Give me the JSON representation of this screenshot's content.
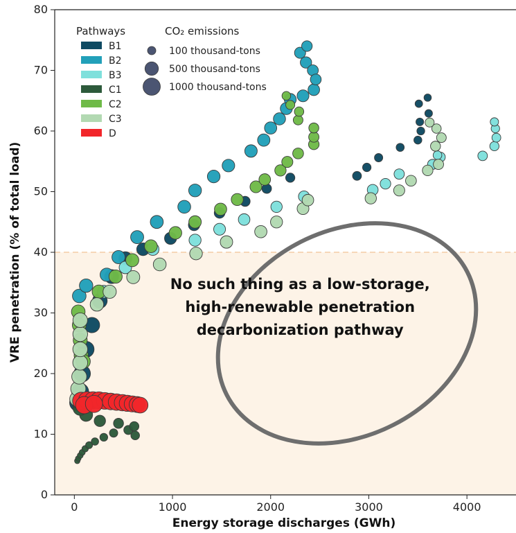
{
  "chart_data": {
    "type": "scatter",
    "xlabel": "Energy storage discharges (GWh)",
    "ylabel": "VRE penetration (% of total load)",
    "xlim": [
      -200,
      4500
    ],
    "ylim": [
      0,
      80
    ],
    "xticks": [
      0,
      1000,
      2000,
      3000,
      4000
    ],
    "yticks": [
      0,
      10,
      20,
      30,
      40,
      50,
      60,
      70,
      80
    ],
    "shaded_region": {
      "y_max": 40,
      "color": "#fdf3e7"
    },
    "threshold_line": {
      "y": 40,
      "color": "#f6d7b8"
    },
    "legend_pathways_title": "Pathways",
    "legend_size_title": "CO₂ emissions",
    "size_legend": [
      {
        "label": "100 thousand-tons",
        "value": 100
      },
      {
        "label": "500 thousand-tons",
        "value": 500
      },
      {
        "label": "1000 thousand-tons",
        "value": 1000
      }
    ],
    "annotation": {
      "lines": [
        "No such thing as a low-storage,",
        "high-renewable penetration",
        "decarbonization pathway"
      ],
      "center": [
        2300,
        31
      ]
    },
    "series": [
      {
        "name": "B1",
        "color": "#0e4a62",
        "points": [
          [
            40,
            15.2,
            1000
          ],
          [
            60,
            17,
            950
          ],
          [
            80,
            20,
            880
          ],
          [
            120,
            24,
            800
          ],
          [
            180,
            28,
            720
          ],
          [
            260,
            32,
            640
          ],
          [
            380,
            36,
            560
          ],
          [
            520,
            39,
            480
          ],
          [
            700,
            40.5,
            420
          ],
          [
            980,
            42.3,
            360
          ],
          [
            1220,
            44.5,
            300
          ],
          [
            1480,
            46.5,
            250
          ],
          [
            1740,
            48.4,
            200
          ],
          [
            1960,
            50.5,
            170
          ],
          [
            2200,
            52.3,
            150
          ],
          [
            2880,
            52.6,
            130
          ],
          [
            2980,
            54,
            110
          ],
          [
            3100,
            55.6,
            100
          ],
          [
            3320,
            57.3,
            90
          ],
          [
            3500,
            58.5,
            85
          ],
          [
            3530,
            60,
            80
          ],
          [
            3520,
            61.5,
            75
          ],
          [
            3610,
            62.9,
            70
          ],
          [
            3510,
            64.5,
            65
          ],
          [
            3600,
            65.5,
            60
          ]
        ]
      },
      {
        "name": "B2",
        "color": "#22a0b9",
        "points": [
          [
            50,
            32.8,
            520
          ],
          [
            120,
            34.5,
            500
          ],
          [
            330,
            36.3,
            480
          ],
          [
            450,
            39.2,
            470
          ],
          [
            640,
            42.5,
            460
          ],
          [
            840,
            45,
            450
          ],
          [
            1120,
            47.5,
            440
          ],
          [
            1230,
            50.2,
            430
          ],
          [
            1420,
            52.5,
            420
          ],
          [
            1570,
            54.3,
            410
          ],
          [
            1800,
            56.7,
            400
          ],
          [
            1930,
            58.5,
            390
          ],
          [
            2000,
            60.5,
            380
          ],
          [
            2090,
            62,
            370
          ],
          [
            2160,
            63.7,
            360
          ],
          [
            2200,
            65.2,
            350
          ],
          [
            2330,
            65.8,
            340
          ],
          [
            2440,
            66.8,
            320
          ],
          [
            2360,
            71.3,
            300
          ],
          [
            2300,
            72.9,
            280
          ],
          [
            2430,
            70,
            270
          ],
          [
            2460,
            68.5,
            260
          ],
          [
            2370,
            74,
            240
          ]
        ]
      },
      {
        "name": "B3",
        "color": "#7fe0dc",
        "points": [
          [
            300,
            33.5,
            420
          ],
          [
            520,
            37.5,
            400
          ],
          [
            800,
            40.5,
            380
          ],
          [
            1230,
            42,
            360
          ],
          [
            1480,
            43.8,
            340
          ],
          [
            1730,
            45.4,
            320
          ],
          [
            2060,
            47.5,
            300
          ],
          [
            2340,
            49.2,
            280
          ],
          [
            3040,
            50.3,
            260
          ],
          [
            3170,
            51.3,
            240
          ],
          [
            3310,
            52.9,
            220
          ],
          [
            3650,
            54.5,
            200
          ],
          [
            3730,
            55.7,
            180
          ],
          [
            4160,
            55.9,
            170
          ],
          [
            4280,
            57.5,
            150
          ],
          [
            4300,
            58.9,
            130
          ],
          [
            3700,
            56,
            120
          ],
          [
            4290,
            60.4,
            110
          ],
          [
            4280,
            61.5,
            100
          ]
        ]
      },
      {
        "name": "C1",
        "color": "#2d5a3b",
        "points": [
          [
            30,
            5.6,
            10
          ],
          [
            40,
            6,
            12
          ],
          [
            60,
            6.5,
            15
          ],
          [
            80,
            7,
            20
          ],
          [
            110,
            7.6,
            30
          ],
          [
            150,
            8.2,
            45
          ],
          [
            210,
            8.8,
            60
          ],
          [
            300,
            9.5,
            80
          ],
          [
            400,
            10.2,
            100
          ],
          [
            550,
            10.7,
            140
          ],
          [
            610,
            11.3,
            160
          ],
          [
            620,
            9.8,
            120
          ],
          [
            450,
            11.8,
            200
          ],
          [
            260,
            12.2,
            300
          ],
          [
            120,
            13.2,
            450
          ],
          [
            60,
            14.3,
            600
          ],
          [
            40,
            15.5,
            700
          ]
        ]
      },
      {
        "name": "C2",
        "color": "#6fba48",
        "points": [
          [
            40,
            30.2,
            520
          ],
          [
            50,
            28,
            540
          ],
          [
            60,
            25.5,
            560
          ],
          [
            70,
            23,
            580
          ],
          [
            90,
            22,
            590
          ],
          [
            250,
            33.5,
            500
          ],
          [
            420,
            36,
            480
          ],
          [
            590,
            38.7,
            460
          ],
          [
            780,
            41,
            440
          ],
          [
            1030,
            43.2,
            420
          ],
          [
            1230,
            45,
            400
          ],
          [
            1490,
            47.1,
            380
          ],
          [
            1660,
            48.7,
            360
          ],
          [
            1850,
            50.8,
            340
          ],
          [
            1940,
            52,
            320
          ],
          [
            2100,
            53.5,
            300
          ],
          [
            2170,
            54.9,
            280
          ],
          [
            2280,
            56.3,
            260
          ],
          [
            2440,
            57.8,
            240
          ],
          [
            2440,
            59,
            220
          ],
          [
            2440,
            60.5,
            200
          ],
          [
            2280,
            61.8,
            180
          ],
          [
            2290,
            63.2,
            160
          ],
          [
            2200,
            64.3,
            140
          ],
          [
            2160,
            65.8,
            120
          ]
        ]
      },
      {
        "name": "C3",
        "color": "#b2d9b2",
        "points": [
          [
            30,
            15.8,
            700
          ],
          [
            40,
            17.5,
            690
          ],
          [
            50,
            19.5,
            680
          ],
          [
            60,
            21.8,
            670
          ],
          [
            60,
            24,
            660
          ],
          [
            60,
            26.5,
            650
          ],
          [
            60,
            28.8,
            640
          ],
          [
            230,
            31.4,
            500
          ],
          [
            360,
            33.5,
            480
          ],
          [
            600,
            35.9,
            460
          ],
          [
            870,
            38,
            440
          ],
          [
            1240,
            39.8,
            420
          ],
          [
            1550,
            41.7,
            400
          ],
          [
            1900,
            43.4,
            380
          ],
          [
            2060,
            45,
            360
          ],
          [
            2330,
            47.2,
            340
          ],
          [
            2380,
            48.6,
            320
          ],
          [
            3020,
            48.9,
            300
          ],
          [
            3310,
            50.2,
            280
          ],
          [
            3430,
            51.8,
            260
          ],
          [
            3600,
            53.5,
            240
          ],
          [
            3710,
            54.5,
            220
          ],
          [
            3680,
            57.5,
            200
          ],
          [
            3740,
            58.9,
            180
          ],
          [
            3690,
            60.4,
            160
          ],
          [
            3620,
            61.4,
            140
          ]
        ]
      },
      {
        "name": "D",
        "color": "#f2262a",
        "points": [
          [
            70,
            15.5,
            1000
          ],
          [
            130,
            15.6,
            980
          ],
          [
            190,
            15.6,
            960
          ],
          [
            250,
            15.6,
            940
          ],
          [
            310,
            15.5,
            920
          ],
          [
            370,
            15.4,
            900
          ],
          [
            430,
            15.3,
            880
          ],
          [
            490,
            15.2,
            860
          ],
          [
            540,
            15.1,
            840
          ],
          [
            590,
            15,
            820
          ],
          [
            640,
            14.9,
            800
          ],
          [
            670,
            14.8,
            780
          ],
          [
            100,
            14.8,
            1000
          ],
          [
            200,
            15,
            980
          ]
        ]
      }
    ]
  }
}
